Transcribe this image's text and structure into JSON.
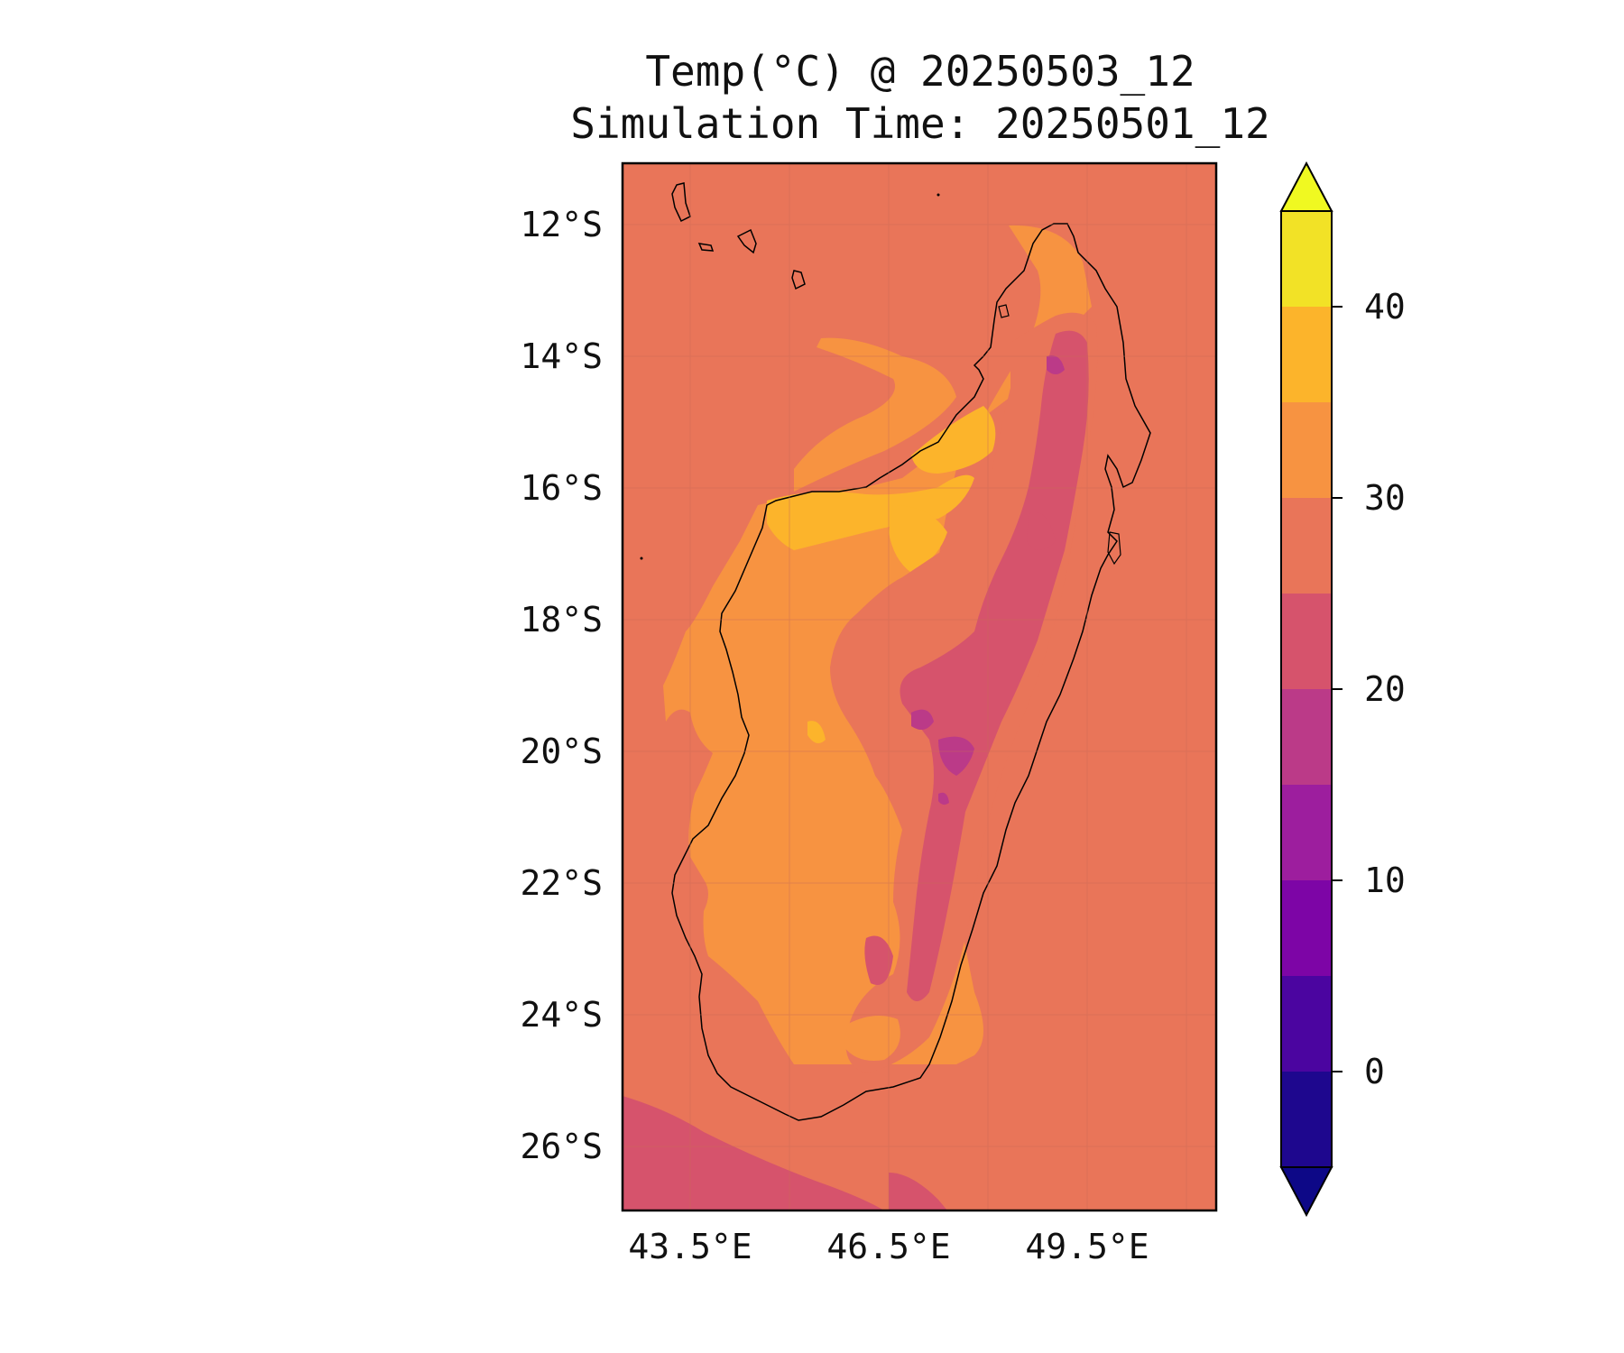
{
  "title": {
    "line1": "Temp(°C) @ 20250503_12",
    "line2": "Simulation Time: 20250501_12"
  },
  "map": {
    "region": "Madagascar",
    "lat_ticks": [
      "12°S",
      "14°S",
      "16°S",
      "18°S",
      "20°S",
      "22°S",
      "24°S",
      "26°S"
    ],
    "lon_ticks": [
      "43.5°E",
      "46.5°E",
      "49.5°E"
    ],
    "background_color": "#e97559"
  },
  "colorbar": {
    "ticks": [
      "40",
      "30",
      "20",
      "10",
      "0"
    ],
    "colors_top_to_bottom": [
      "#f2e226",
      "#fcb42b",
      "#f79341",
      "#e97559",
      "#d6536c",
      "#bb3a88",
      "#9d1e9e",
      "#7d05a6",
      "#4b05a0",
      "#1e078e"
    ],
    "extend_max_color": "#f0f921",
    "extend_min_color": "#0d0887"
  }
}
